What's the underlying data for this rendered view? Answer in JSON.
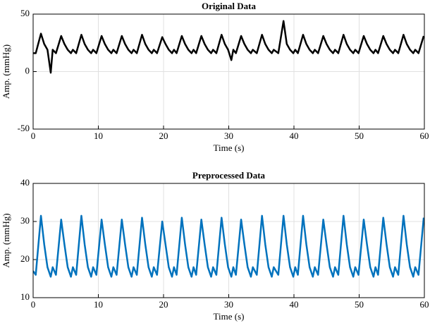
{
  "chart_data": [
    {
      "type": "line",
      "title": "Original Data",
      "xlabel": "Time (s)",
      "ylabel": "Amp. (mmHg)",
      "x": [
        0,
        0.4,
        1.2,
        1.7,
        2.2,
        2.7,
        3.0,
        3.5,
        4.3,
        4.8,
        5.3,
        5.8,
        6.1,
        6.6,
        7.4,
        7.9,
        8.4,
        8.9,
        9.2,
        9.7,
        10.5,
        11.0,
        11.5,
        12.0,
        12.3,
        12.8,
        13.6,
        14.1,
        14.6,
        15.1,
        15.4,
        15.9,
        16.7,
        17.2,
        17.7,
        18.2,
        18.5,
        19.0,
        19.8,
        20.3,
        20.8,
        21.3,
        21.6,
        22.0,
        22.8,
        23.3,
        23.8,
        24.3,
        24.6,
        25.0,
        25.8,
        26.3,
        26.8,
        27.3,
        27.6,
        28.1,
        28.9,
        29.4,
        29.9,
        30.4,
        30.7,
        31.1,
        31.9,
        32.4,
        32.9,
        33.4,
        33.7,
        34.3,
        35.1,
        35.6,
        36.1,
        36.6,
        36.9,
        37.6,
        38.4,
        38.9,
        39.4,
        39.9,
        40.2,
        40.6,
        41.4,
        41.9,
        42.4,
        42.9,
        43.2,
        43.7,
        44.5,
        45.0,
        45.5,
        46.0,
        46.3,
        46.8,
        47.6,
        48.1,
        48.6,
        49.1,
        49.4,
        49.9,
        50.7,
        51.2,
        51.7,
        52.2,
        52.5,
        52.9,
        53.7,
        54.2,
        54.7,
        55.2,
        55.5,
        56.0,
        56.8,
        57.3,
        57.8,
        58.3,
        58.6,
        59.1,
        59.9
      ],
      "series": [
        {
          "color": "#000000",
          "values": [
            16,
            16,
            33,
            24,
            19,
            -1,
            19,
            16,
            31,
            24,
            19,
            16,
            19,
            16,
            32,
            24,
            19,
            16,
            19,
            16,
            31,
            24,
            19,
            16,
            19,
            16,
            31,
            24,
            19,
            16,
            19,
            16,
            32,
            24,
            19,
            16,
            19,
            16,
            30,
            24,
            19,
            16,
            19,
            16,
            31,
            24,
            19,
            16,
            19,
            16,
            31,
            24,
            19,
            16,
            19,
            16,
            32,
            24,
            19,
            10,
            19,
            16,
            31,
            24,
            19,
            16,
            19,
            16,
            32,
            24,
            19,
            16,
            19,
            16,
            44,
            24,
            19,
            16,
            19,
            16,
            32,
            24,
            19,
            16,
            19,
            16,
            31,
            24,
            19,
            16,
            19,
            16,
            32,
            24,
            19,
            16,
            19,
            16,
            31,
            24,
            19,
            16,
            19,
            16,
            31,
            24,
            19,
            16,
            19,
            16,
            32,
            24,
            19,
            16,
            19,
            16,
            31
          ]
        }
      ],
      "xlim": [
        0,
        60
      ],
      "ylim": [
        -50,
        50
      ],
      "xticks": [
        0,
        10,
        20,
        30,
        40,
        50,
        60
      ],
      "yticks": [
        -50,
        0,
        50
      ],
      "grid": true
    },
    {
      "type": "line",
      "title": "Preprocessed Data",
      "xlabel": "Time (s)",
      "ylabel": "Amp. (mmHg)",
      "x": [
        0,
        0.4,
        1.2,
        1.7,
        2.2,
        2.7,
        3.0,
        3.5,
        4.3,
        4.8,
        5.3,
        5.8,
        6.1,
        6.6,
        7.4,
        7.9,
        8.4,
        8.9,
        9.2,
        9.7,
        10.5,
        11.0,
        11.5,
        12.0,
        12.3,
        12.8,
        13.6,
        14.1,
        14.6,
        15.1,
        15.4,
        15.9,
        16.7,
        17.2,
        17.7,
        18.2,
        18.5,
        19.0,
        19.8,
        20.3,
        20.8,
        21.3,
        21.6,
        22.0,
        22.8,
        23.3,
        23.8,
        24.3,
        24.6,
        25.0,
        25.8,
        26.3,
        26.8,
        27.3,
        27.6,
        28.1,
        28.9,
        29.4,
        29.9,
        30.4,
        30.7,
        31.1,
        31.9,
        32.4,
        32.9,
        33.4,
        33.7,
        34.3,
        35.1,
        35.6,
        36.1,
        36.6,
        36.9,
        37.6,
        38.4,
        38.9,
        39.4,
        39.9,
        40.2,
        40.6,
        41.4,
        41.9,
        42.4,
        42.9,
        43.2,
        43.7,
        44.5,
        45.0,
        45.5,
        46.0,
        46.3,
        46.8,
        47.6,
        48.1,
        48.6,
        49.1,
        49.4,
        49.9,
        50.7,
        51.2,
        51.7,
        52.2,
        52.5,
        52.9,
        53.7,
        54.2,
        54.7,
        55.2,
        55.5,
        56.0,
        56.8,
        57.3,
        57.8,
        58.3,
        58.6,
        59.1,
        59.9
      ],
      "series": [
        {
          "color": "#0072bd",
          "values": [
            17,
            16,
            31.5,
            24,
            18,
            15.5,
            18,
            16,
            30.5,
            24,
            18,
            15.5,
            18,
            16,
            31.5,
            24,
            18,
            15.5,
            18,
            16,
            30.5,
            24,
            18,
            15.5,
            18,
            16,
            30.5,
            24,
            18,
            15.5,
            18,
            16,
            31,
            24,
            18,
            15.5,
            18,
            16,
            30,
            24,
            18,
            15.5,
            18,
            16,
            31,
            24,
            18,
            15.5,
            18,
            16,
            30.5,
            24,
            18,
            15.5,
            18,
            16,
            31,
            24,
            18,
            15.5,
            18,
            16,
            30.5,
            24,
            18,
            15.5,
            18,
            16,
            31.5,
            24,
            18,
            15.5,
            18,
            16,
            31.5,
            24,
            18,
            15.5,
            18,
            16,
            31.5,
            24,
            18,
            15.5,
            18,
            16,
            30.5,
            24,
            18,
            15.5,
            18,
            16,
            31.5,
            24,
            18,
            15.5,
            18,
            16,
            30.5,
            24,
            18,
            15.5,
            18,
            16,
            31,
            24,
            18,
            15.5,
            18,
            16,
            31.5,
            24,
            18,
            15.5,
            18,
            16,
            31
          ]
        }
      ],
      "xlim": [
        0,
        60
      ],
      "ylim": [
        10,
        40
      ],
      "xticks": [
        0,
        10,
        20,
        30,
        40,
        50,
        60
      ],
      "yticks": [
        10,
        20,
        30,
        40
      ],
      "grid": true
    }
  ]
}
